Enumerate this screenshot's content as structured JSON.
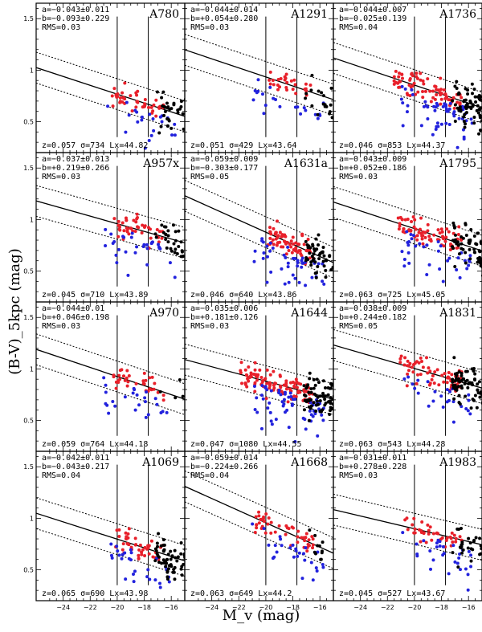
{
  "chart_data": {
    "type": "scatter",
    "xlabel": "M_v (mag)",
    "ylabel": "(B-V)_5kpc (mag)",
    "xlim": [
      -26,
      -15
    ],
    "ylim": [
      0.2,
      1.65
    ],
    "xticks": [
      -24,
      -22,
      -20,
      -18,
      -16
    ],
    "yticks": [
      0.5,
      1,
      1.5
    ],
    "vertical_lines_x": [
      -20,
      -17.7
    ],
    "band_offset_mag": 0.15,
    "colors": {
      "red": "#e8202a",
      "blue": "#2222dd",
      "black": "#000000"
    },
    "panels": [
      {
        "name": "A780",
        "a": "a=−0.043±0.011",
        "b": "b=−0.093±0.229",
        "rms": "RMS=0.03",
        "info": "z=0.057  σ=734  Lx=44.82",
        "slope": -0.043,
        "intercept": -0.093,
        "xmin": -20.9,
        "xmax": -14.7,
        "n_red": 45,
        "n_blue": 22,
        "n_black": 35,
        "seed": 11
      },
      {
        "name": "A1291",
        "a": "a=−0.044±0.014",
        "b": "b=+0.054±0.280",
        "rms": "RMS=0.03",
        "info": "z=0.051  σ=429  Lx=43.64",
        "slope": -0.044,
        "intercept": 0.054,
        "xmin": -20.2,
        "xmax": -14.8,
        "n_red": 28,
        "n_blue": 22,
        "n_black": 18,
        "seed": 23
      },
      {
        "name": "A1736",
        "a": "a=−0.044±0.007",
        "b": "b=−0.025±0.139",
        "rms": "RMS=0.04",
        "info": "z=0.046  σ=853  Lx=44.37",
        "slope": -0.044,
        "intercept": -0.025,
        "xmin": -21.9,
        "xmax": -14.7,
        "n_red": 80,
        "n_blue": 55,
        "n_black": 70,
        "seed": 37
      },
      {
        "name": "A957x",
        "a": "a=−0.037±0.013",
        "b": "b=+0.219±0.266",
        "rms": "RMS=0.03",
        "info": "z=0.045  σ=710  Lx=43.89",
        "slope": -0.037,
        "intercept": 0.219,
        "xmin": -20.6,
        "xmax": -14.8,
        "n_red": 45,
        "n_blue": 30,
        "n_black": 30,
        "seed": 41
      },
      {
        "name": "A1631a",
        "a": "a=−0.059±0.009",
        "b": "b=−0.303±0.177",
        "rms": "RMS=0.05",
        "info": "z=0.046  σ=640  Lx=43.86",
        "slope": -0.059,
        "intercept": -0.303,
        "xmin": -20.3,
        "xmax": -14.7,
        "n_red": 70,
        "n_blue": 45,
        "n_black": 50,
        "seed": 53
      },
      {
        "name": "A1795",
        "a": "a=−0.043±0.009",
        "b": "b=+0.052±0.186",
        "rms": "RMS=0.03",
        "info": "z=0.063  σ=725  Lx=45.05",
        "slope": -0.043,
        "intercept": 0.052,
        "xmin": -21.5,
        "xmax": -14.7,
        "n_red": 75,
        "n_blue": 35,
        "n_black": 65,
        "seed": 67
      },
      {
        "name": "A970",
        "a": "a=−0.044±0.01",
        "b": "b=+0.046±0.198",
        "rms": "RMS=0.03",
        "info": "z=0.059  σ=764  Lx=44.18",
        "slope": -0.044,
        "intercept": 0.046,
        "xmin": -20.6,
        "xmax": -15.8,
        "n_red": 35,
        "n_blue": 25,
        "n_black": 4,
        "seed": 71
      },
      {
        "name": "A1644",
        "a": "a=−0.035±0.006",
        "b": "b=+0.181±0.126",
        "rms": "RMS=0.03",
        "info": "z=0.047  σ=1080  Lx=44.55",
        "slope": -0.035,
        "intercept": 0.181,
        "xmin": -22.2,
        "xmax": -14.7,
        "n_red": 110,
        "n_blue": 60,
        "n_black": 80,
        "seed": 83
      },
      {
        "name": "A1831",
        "a": "a=−0.038±0.009",
        "b": "b=+0.244±0.182",
        "rms": "RMS=0.05",
        "info": "z=0.063  σ=543  Lx=44.28",
        "slope": -0.038,
        "intercept": 0.244,
        "xmin": -21.4,
        "xmax": -14.7,
        "n_red": 65,
        "n_blue": 25,
        "n_black": 70,
        "seed": 97
      },
      {
        "name": "A1069",
        "a": "a=−0.042±0.011",
        "b": "b=−0.043±0.217",
        "rms": "RMS=0.04",
        "info": "z=0.065  σ=690  Lx=43.98",
        "slope": -0.042,
        "intercept": -0.043,
        "xmin": -20.7,
        "xmax": -14.7,
        "n_red": 45,
        "n_blue": 28,
        "n_black": 60,
        "seed": 101
      },
      {
        "name": "A1668",
        "a": "a=−0.059±0.014",
        "b": "b=−0.224±0.266",
        "rms": "RMS=0.04",
        "info": "z=0.063  σ=649  Lx=44.2",
        "slope": -0.059,
        "intercept": -0.224,
        "xmin": -21.1,
        "xmax": -15.2,
        "n_red": 50,
        "n_blue": 28,
        "n_black": 12,
        "seed": 113
      },
      {
        "name": "A1983",
        "a": "a=−0.031±0.011",
        "b": "b=+0.278±0.228",
        "rms": "RMS=0.03",
        "info": "z=0.045  σ=527  Lx=43.67",
        "slope": -0.031,
        "intercept": 0.278,
        "xmin": -21.0,
        "xmax": -14.7,
        "n_red": 40,
        "n_blue": 30,
        "n_black": 28,
        "seed": 127
      }
    ]
  }
}
